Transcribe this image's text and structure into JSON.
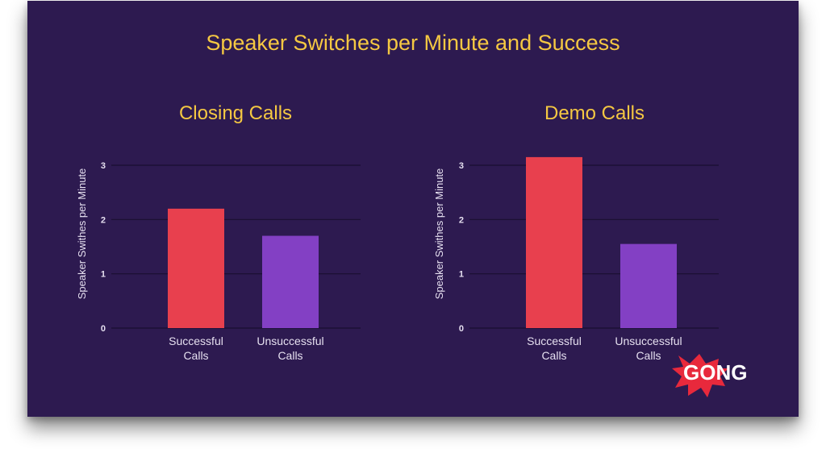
{
  "title": "Speaker Switches per Minute and Success",
  "brand": {
    "name": "GONG",
    "color": "#e8293c"
  },
  "colors": {
    "background": "#2d1a50",
    "title": "#f5c842",
    "successful": "#e8404e",
    "unsuccessful": "#8340c4",
    "text": "#e6e0f0",
    "grid": "#1a0f30"
  },
  "chart_data": [
    {
      "type": "bar",
      "title": "Closing Calls",
      "ylabel": "Speaker Swithes per Minute",
      "categories": [
        "Successful Calls",
        "Unsuccessful Calls"
      ],
      "category_lines": [
        [
          "Successful",
          "Calls"
        ],
        [
          "Unsuccessful",
          "Calls"
        ]
      ],
      "values": [
        2.2,
        1.7
      ],
      "ylim": [
        0,
        3
      ],
      "yticks": [
        0,
        1,
        2,
        3
      ],
      "grid": true,
      "legend": "none"
    },
    {
      "type": "bar",
      "title": "Demo Calls",
      "ylabel": "Speaker Swithes per Minute",
      "categories": [
        "Successful Calls",
        "Unsuccessful Calls"
      ],
      "category_lines": [
        [
          "Successful",
          "Calls"
        ],
        [
          "Unsuccessful",
          "Calls"
        ]
      ],
      "values": [
        3.15,
        1.55
      ],
      "ylim": [
        0,
        3
      ],
      "yticks": [
        0,
        1,
        2,
        3
      ],
      "grid": true,
      "legend": "none"
    }
  ]
}
